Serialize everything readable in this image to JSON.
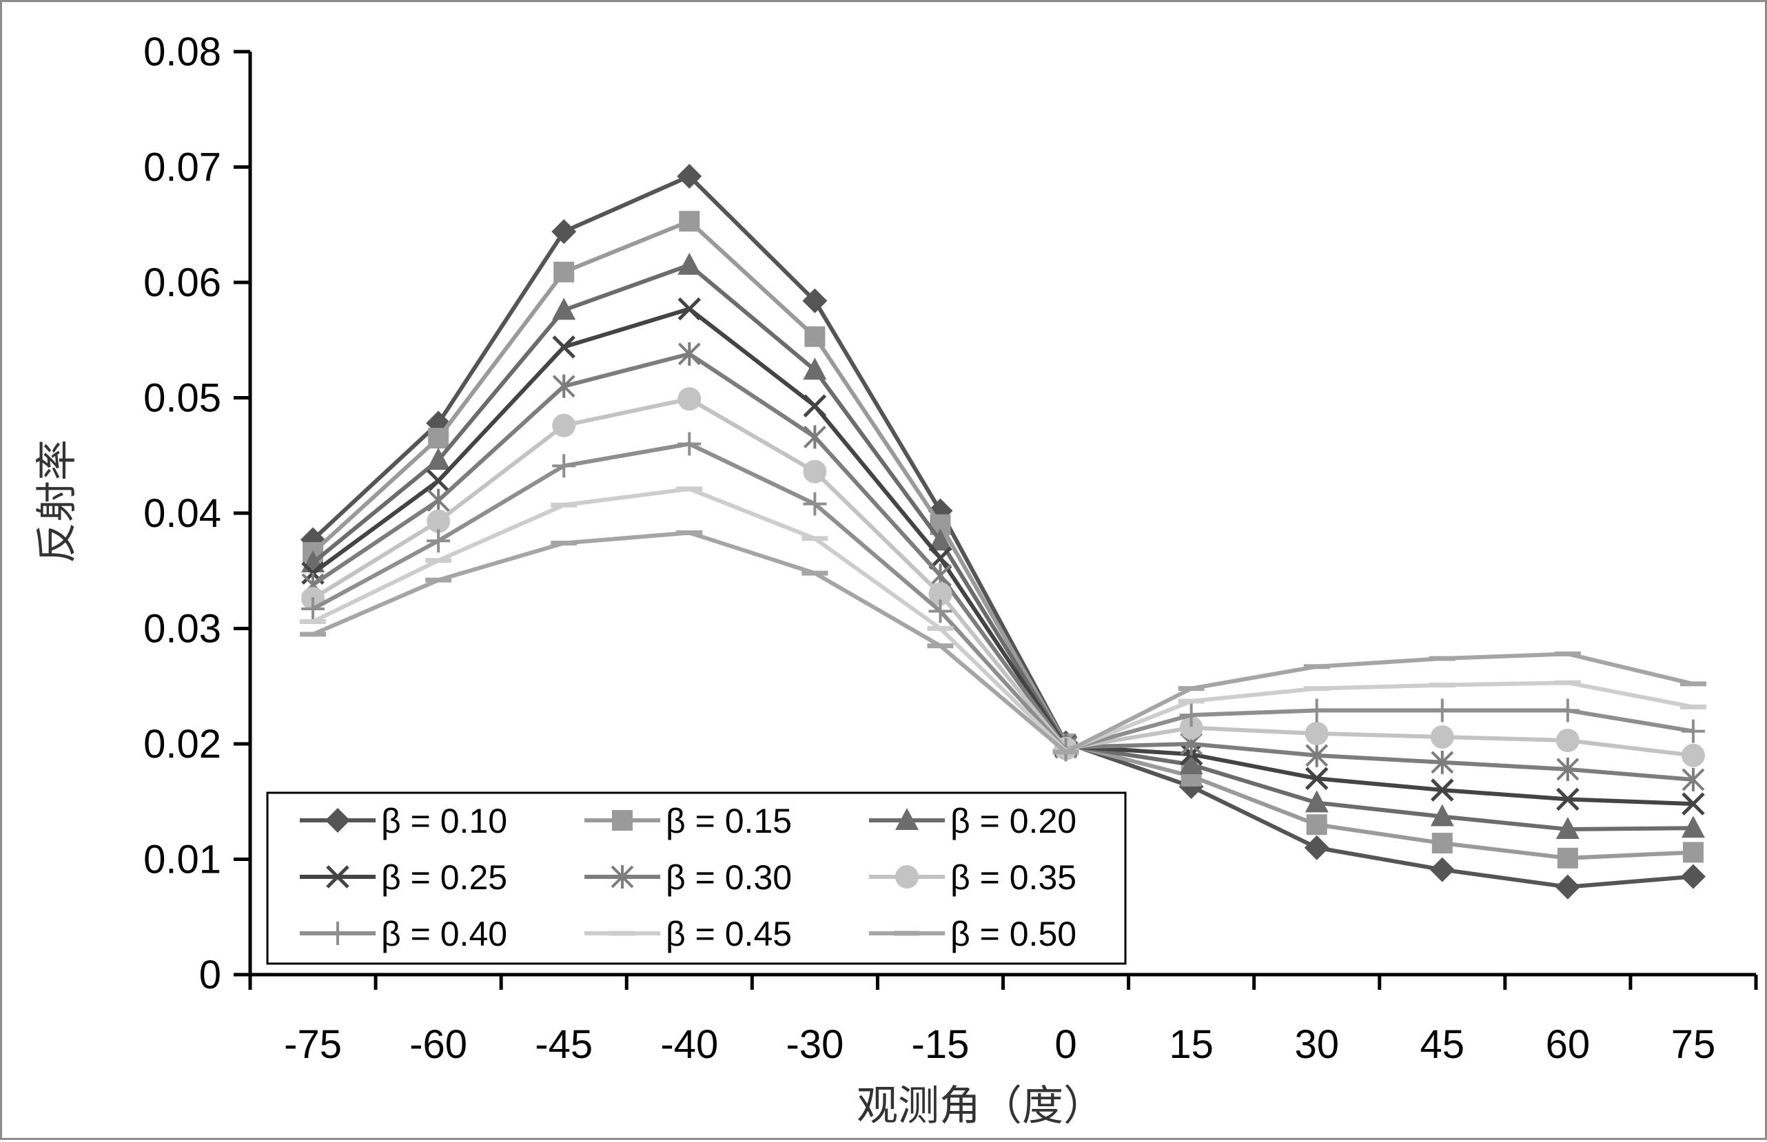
{
  "chart_data": {
    "type": "line",
    "xlabel": "观测角（度）",
    "ylabel": "反射率",
    "categories": [
      "-75",
      "-60",
      "-45",
      "-40",
      "-30",
      "-15",
      "0",
      "15",
      "30",
      "45",
      "60",
      "75"
    ],
    "ylim": [
      0,
      0.08
    ],
    "yticks": [
      "0",
      "0.01",
      "0.02",
      "0.03",
      "0.04",
      "0.05",
      "0.06",
      "0.07",
      "0.08"
    ],
    "grid": false,
    "legend_position": "bottom-left",
    "series": [
      {
        "name": "β = 0.10",
        "marker": "diamond",
        "color": "#555555",
        "values": [
          0.0377,
          0.0478,
          0.0644,
          0.0692,
          0.0584,
          0.0402,
          0.0201,
          0.0163,
          0.011,
          0.0091,
          0.0076,
          0.0085
        ]
      },
      {
        "name": "β = 0.15",
        "marker": "square",
        "color": "#9a9a9a",
        "values": [
          0.0366,
          0.0465,
          0.0609,
          0.0653,
          0.0553,
          0.039,
          0.02,
          0.0172,
          0.013,
          0.0114,
          0.0101,
          0.0106
        ]
      },
      {
        "name": "β = 0.20",
        "marker": "triangle",
        "color": "#6c6c6c",
        "values": [
          0.0357,
          0.0446,
          0.0576,
          0.0615,
          0.0524,
          0.0376,
          0.0199,
          0.0182,
          0.0149,
          0.0137,
          0.0126,
          0.0127
        ]
      },
      {
        "name": "β = 0.25",
        "marker": "x",
        "color": "#444444",
        "values": [
          0.0348,
          0.0428,
          0.0544,
          0.0577,
          0.0493,
          0.0361,
          0.0198,
          0.0191,
          0.017,
          0.016,
          0.0152,
          0.0148
        ]
      },
      {
        "name": "β = 0.30",
        "marker": "asterisk",
        "color": "#7d7d7d",
        "values": [
          0.0338,
          0.0411,
          0.051,
          0.0538,
          0.0466,
          0.0346,
          0.0197,
          0.02,
          0.019,
          0.0184,
          0.0178,
          0.0169
        ]
      },
      {
        "name": "β = 0.35",
        "marker": "circle",
        "color": "#c3c3c3",
        "values": [
          0.0326,
          0.0393,
          0.0476,
          0.0499,
          0.0436,
          0.033,
          0.0196,
          0.0214,
          0.0209,
          0.0206,
          0.0203,
          0.019
        ]
      },
      {
        "name": "β = 0.40",
        "marker": "plus",
        "color": "#8e8e8e",
        "values": [
          0.0317,
          0.0376,
          0.0441,
          0.046,
          0.0408,
          0.0315,
          0.0195,
          0.0225,
          0.0229,
          0.0229,
          0.0229,
          0.0211
        ]
      },
      {
        "name": "β = 0.45",
        "marker": "dash",
        "color": "#cdcdcd",
        "values": [
          0.0306,
          0.0359,
          0.0407,
          0.0421,
          0.0378,
          0.03,
          0.0194,
          0.0237,
          0.0248,
          0.0251,
          0.0253,
          0.0232
        ]
      },
      {
        "name": "β = 0.50",
        "marker": "dash",
        "color": "#a5a5a5",
        "values": [
          0.0295,
          0.0342,
          0.0374,
          0.0383,
          0.0348,
          0.0285,
          0.0193,
          0.0248,
          0.0267,
          0.0274,
          0.0278,
          0.0252
        ]
      }
    ]
  }
}
